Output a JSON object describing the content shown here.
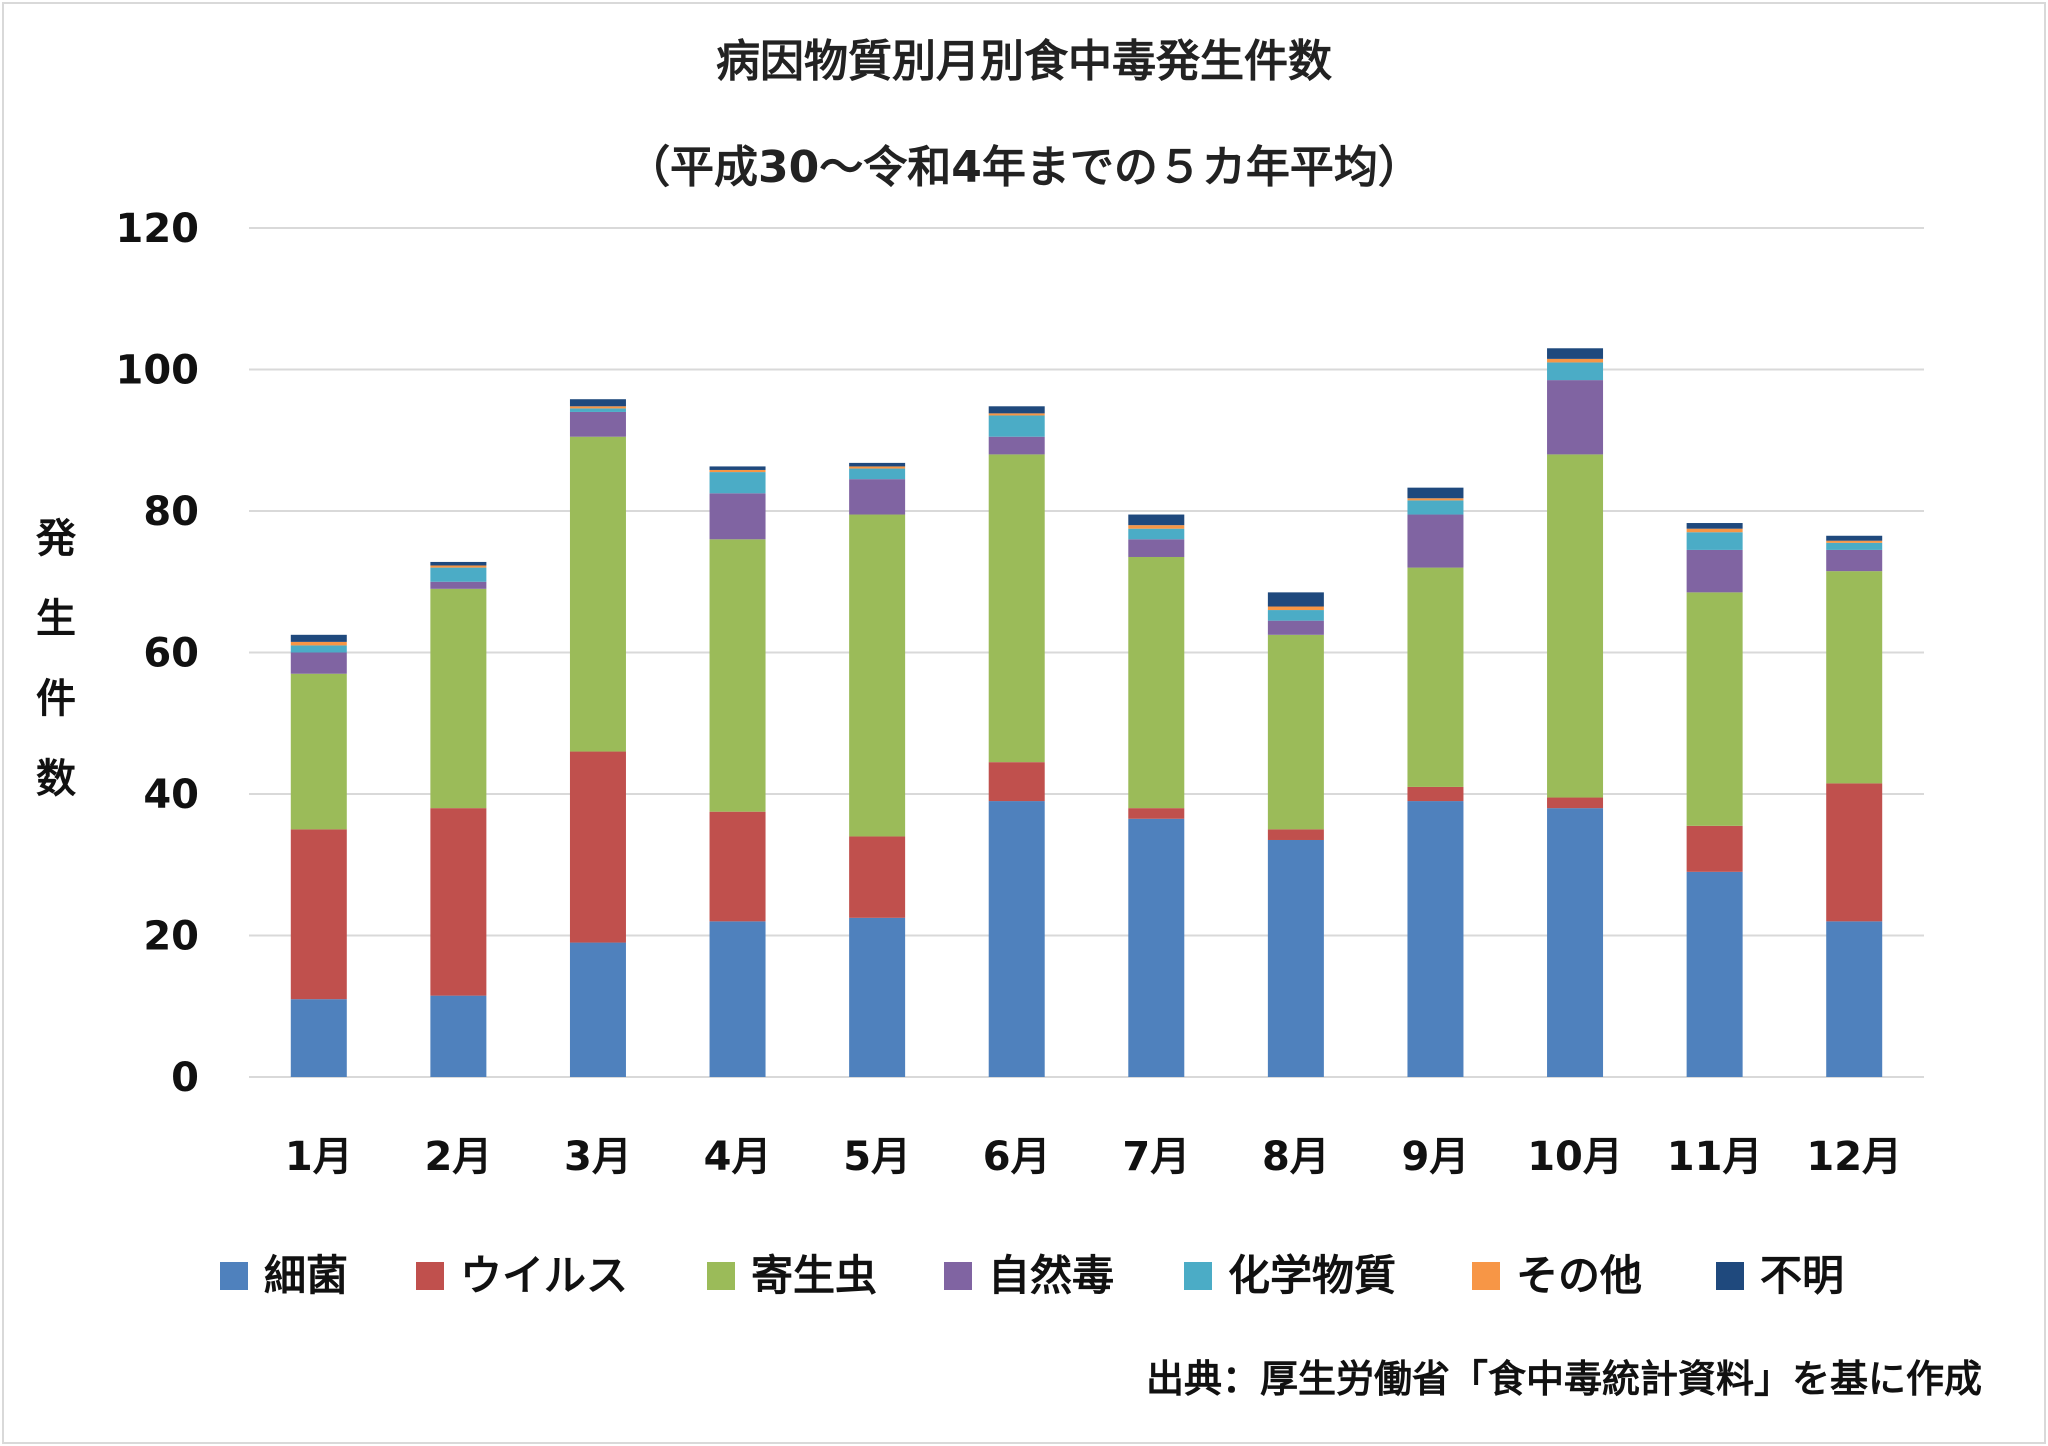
{
  "chart_data": {
    "type": "bar",
    "stacked": true,
    "title": "病因物質別月別食中毒発生件数",
    "subtitle": "（平成30～令和4年までの５カ年平均）",
    "ylabel": "発生件数",
    "xlabel": "",
    "ylim": [
      0,
      120
    ],
    "yticks": [
      0,
      20,
      40,
      60,
      80,
      100,
      120
    ],
    "grid": true,
    "legend_position": "bottom",
    "categories": [
      "1月",
      "2月",
      "3月",
      "4月",
      "5月",
      "6月",
      "7月",
      "8月",
      "9月",
      "10月",
      "11月",
      "12月"
    ],
    "series": [
      {
        "name": "細菌",
        "color": "#4f81bd",
        "values": [
          11,
          11.5,
          19,
          22,
          22.5,
          39,
          36.5,
          33.5,
          39,
          38,
          29,
          22
        ]
      },
      {
        "name": "ウイルス",
        "color": "#c0504d",
        "values": [
          24,
          26.5,
          27,
          15.5,
          11.5,
          5.5,
          1.5,
          1.5,
          2,
          1.5,
          6.5,
          19.5
        ]
      },
      {
        "name": "寄生虫",
        "color": "#9bbb59",
        "values": [
          22,
          31,
          44.5,
          38.5,
          45.5,
          43.5,
          35.5,
          27.5,
          31,
          48.5,
          33,
          30
        ]
      },
      {
        "name": "自然毒",
        "color": "#8064a2",
        "values": [
          3,
          1,
          3.5,
          6.5,
          5,
          2.5,
          2.5,
          2,
          7.5,
          10.5,
          6,
          3
        ]
      },
      {
        "name": "化学物質",
        "color": "#4bacc6",
        "values": [
          1,
          2,
          0.5,
          3,
          1.5,
          3,
          1.5,
          1.5,
          2,
          2.5,
          2.5,
          1
        ]
      },
      {
        "name": "その他",
        "color": "#f79646",
        "values": [
          0.5,
          0.3,
          0.3,
          0.3,
          0.3,
          0.3,
          0.5,
          0.5,
          0.3,
          0.5,
          0.5,
          0.3
        ]
      },
      {
        "name": "不明",
        "color": "#1f497d",
        "values": [
          1,
          0.5,
          1,
          0.5,
          0.5,
          1,
          1.5,
          2,
          1.5,
          1.5,
          0.8,
          0.7
        ]
      }
    ],
    "source": "出典：厚生労働省「食中毒統計資料」を基に作成"
  }
}
